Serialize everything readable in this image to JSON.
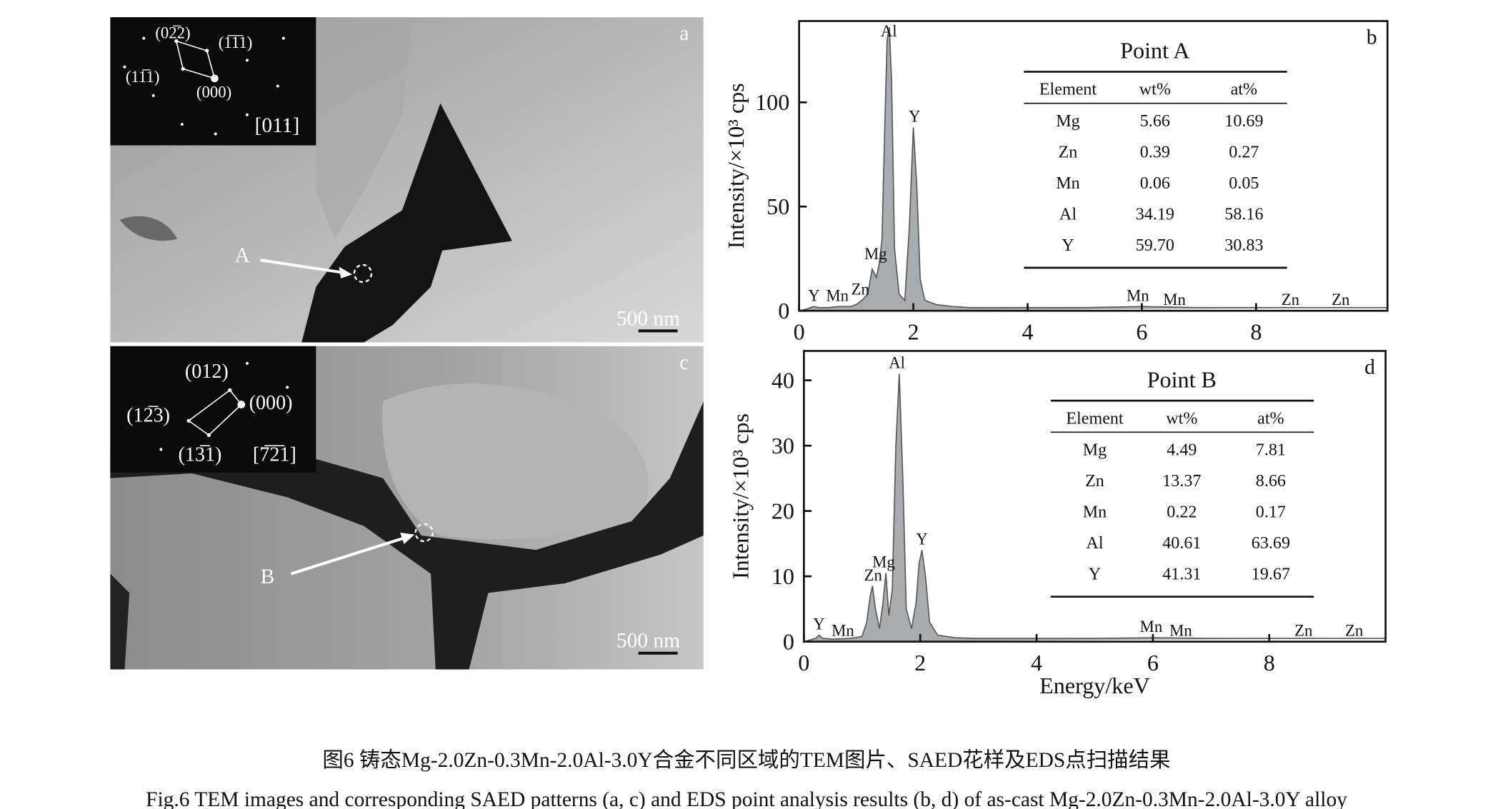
{
  "tem_panels": [
    {
      "label": "a",
      "scale_bar": "500 nm",
      "point": "A",
      "saed": {
        "spots": [
          "(02̅2)",
          "(1̅1̅1)",
          "(11̅1)",
          "(000)"
        ],
        "zone_axis": "[011]"
      }
    },
    {
      "label": "c",
      "scale_bar": "500 nm",
      "point": "B",
      "saed": {
        "spots": [
          "(012)",
          "(000)",
          "(12̅3)",
          "(13̅1)"
        ],
        "zone_axis": "[7̅2̅1]"
      }
    }
  ],
  "chart_data": [
    {
      "type": "line",
      "label": "b",
      "ylabel": "Intensity/×10³ cps",
      "color": "#a9acae",
      "x": [
        0,
        0.15,
        0.25,
        0.35,
        0.5,
        0.7,
        0.9,
        1.0,
        1.1,
        1.2,
        1.28,
        1.35,
        1.4,
        1.45,
        1.5,
        1.54,
        1.58,
        1.62,
        1.67,
        1.75,
        1.85,
        1.93,
        2.0,
        2.06,
        2.12,
        2.2,
        2.4,
        2.7,
        3,
        4,
        5,
        6,
        7,
        8,
        9,
        10,
        10.3
      ],
      "values": [
        0,
        1,
        2,
        1.5,
        1.5,
        2,
        2,
        3,
        5,
        8,
        20,
        16,
        22,
        34,
        90,
        130,
        136,
        110,
        30,
        8,
        5,
        40,
        88,
        60,
        15,
        5,
        3,
        2,
        1.5,
        1.5,
        1.5,
        2,
        1.5,
        1.5,
        1.5,
        1.5,
        1.5
      ],
      "xlim": [
        0,
        10.3
      ],
      "ylim": [
        0,
        139
      ],
      "xticks": [
        0,
        2,
        4,
        6,
        8
      ],
      "yticks": [
        0,
        50,
        100
      ],
      "peak_labels": [
        {
          "text": "Y",
          "x": 0.26
        },
        {
          "text": "Mn",
          "x": 0.67
        },
        {
          "text": "Zn",
          "x": 1.07
        },
        {
          "text": "Mg",
          "x": 1.34
        },
        {
          "text": "Al",
          "x": 1.57
        },
        {
          "text": "Y",
          "x": 2.02
        },
        {
          "text": "Mn",
          "x": 5.93
        },
        {
          "text": "Mn",
          "x": 6.57
        },
        {
          "text": "Zn",
          "x": 8.6
        },
        {
          "text": "Zn",
          "x": 9.48
        }
      ],
      "table": {
        "title": "Point A",
        "columns": [
          "Element",
          "wt%",
          "at%"
        ],
        "rows": [
          [
            "Mg",
            "5.66",
            "10.69"
          ],
          [
            "Zn",
            "0.39",
            "0.27"
          ],
          [
            "Mn",
            "0.06",
            "0.05"
          ],
          [
            "Al",
            "34.19",
            "58.16"
          ],
          [
            "Y",
            "59.70",
            "30.83"
          ]
        ]
      }
    },
    {
      "type": "line",
      "label": "d",
      "ylabel": "Intensity/×10³ cps",
      "xlabel": "Energy/keV",
      "color": "#a9acae",
      "x": [
        0,
        0.2,
        0.26,
        0.32,
        0.5,
        0.8,
        1.0,
        1.08,
        1.14,
        1.18,
        1.23,
        1.3,
        1.36,
        1.41,
        1.46,
        1.52,
        1.58,
        1.64,
        1.7,
        1.76,
        1.85,
        1.93,
        1.98,
        2.03,
        2.09,
        2.16,
        2.3,
        2.6,
        3,
        4,
        5,
        6,
        7,
        8,
        9,
        10
      ],
      "values": [
        0,
        0.5,
        1,
        0.5,
        0.4,
        0.5,
        0.8,
        3,
        7,
        8.5,
        5,
        2,
        6,
        10.5,
        4,
        8,
        30,
        41,
        25,
        5,
        2,
        6,
        12,
        14,
        10,
        3,
        1,
        0.6,
        0.5,
        0.5,
        0.5,
        0.6,
        0.5,
        0.5,
        0.5,
        0.5
      ],
      "xlim": [
        0,
        10
      ],
      "ylim": [
        0,
        44.5
      ],
      "xticks": [
        0,
        2,
        4,
        6,
        8
      ],
      "yticks": [
        0,
        10,
        20,
        30,
        40
      ],
      "peak_labels": [
        {
          "text": "Y",
          "x": 0.26
        },
        {
          "text": "Mn",
          "x": 0.67
        },
        {
          "text": "Zn",
          "x": 1.19
        },
        {
          "text": "Mg",
          "x": 1.37
        },
        {
          "text": "Al",
          "x": 1.6
        },
        {
          "text": "Y",
          "x": 2.03
        },
        {
          "text": "Mn",
          "x": 5.97
        },
        {
          "text": "Mn",
          "x": 6.48
        },
        {
          "text": "Zn",
          "x": 8.59
        },
        {
          "text": "Zn",
          "x": 9.46
        }
      ],
      "table": {
        "title": "Point B",
        "columns": [
          "Element",
          "wt%",
          "at%"
        ],
        "rows": [
          [
            "Mg",
            "4.49",
            "7.81"
          ],
          [
            "Zn",
            "13.37",
            "8.66"
          ],
          [
            "Mn",
            "0.22",
            "0.17"
          ],
          [
            "Al",
            "40.61",
            "63.69"
          ],
          [
            "Y",
            "41.31",
            "19.67"
          ]
        ]
      }
    }
  ],
  "caption": {
    "zh": "图6  铸态Mg-2.0Zn-0.3Mn-2.0Al-3.0Y合金不同区域的TEM图片、SAED花样及EDS点扫描结果",
    "en": "Fig.6  TEM images and corresponding SAED patterns (a, c) and EDS point analysis results (b, d) of as-cast Mg-2.0Zn-0.3Mn-2.0Al-3.0Y alloy"
  }
}
